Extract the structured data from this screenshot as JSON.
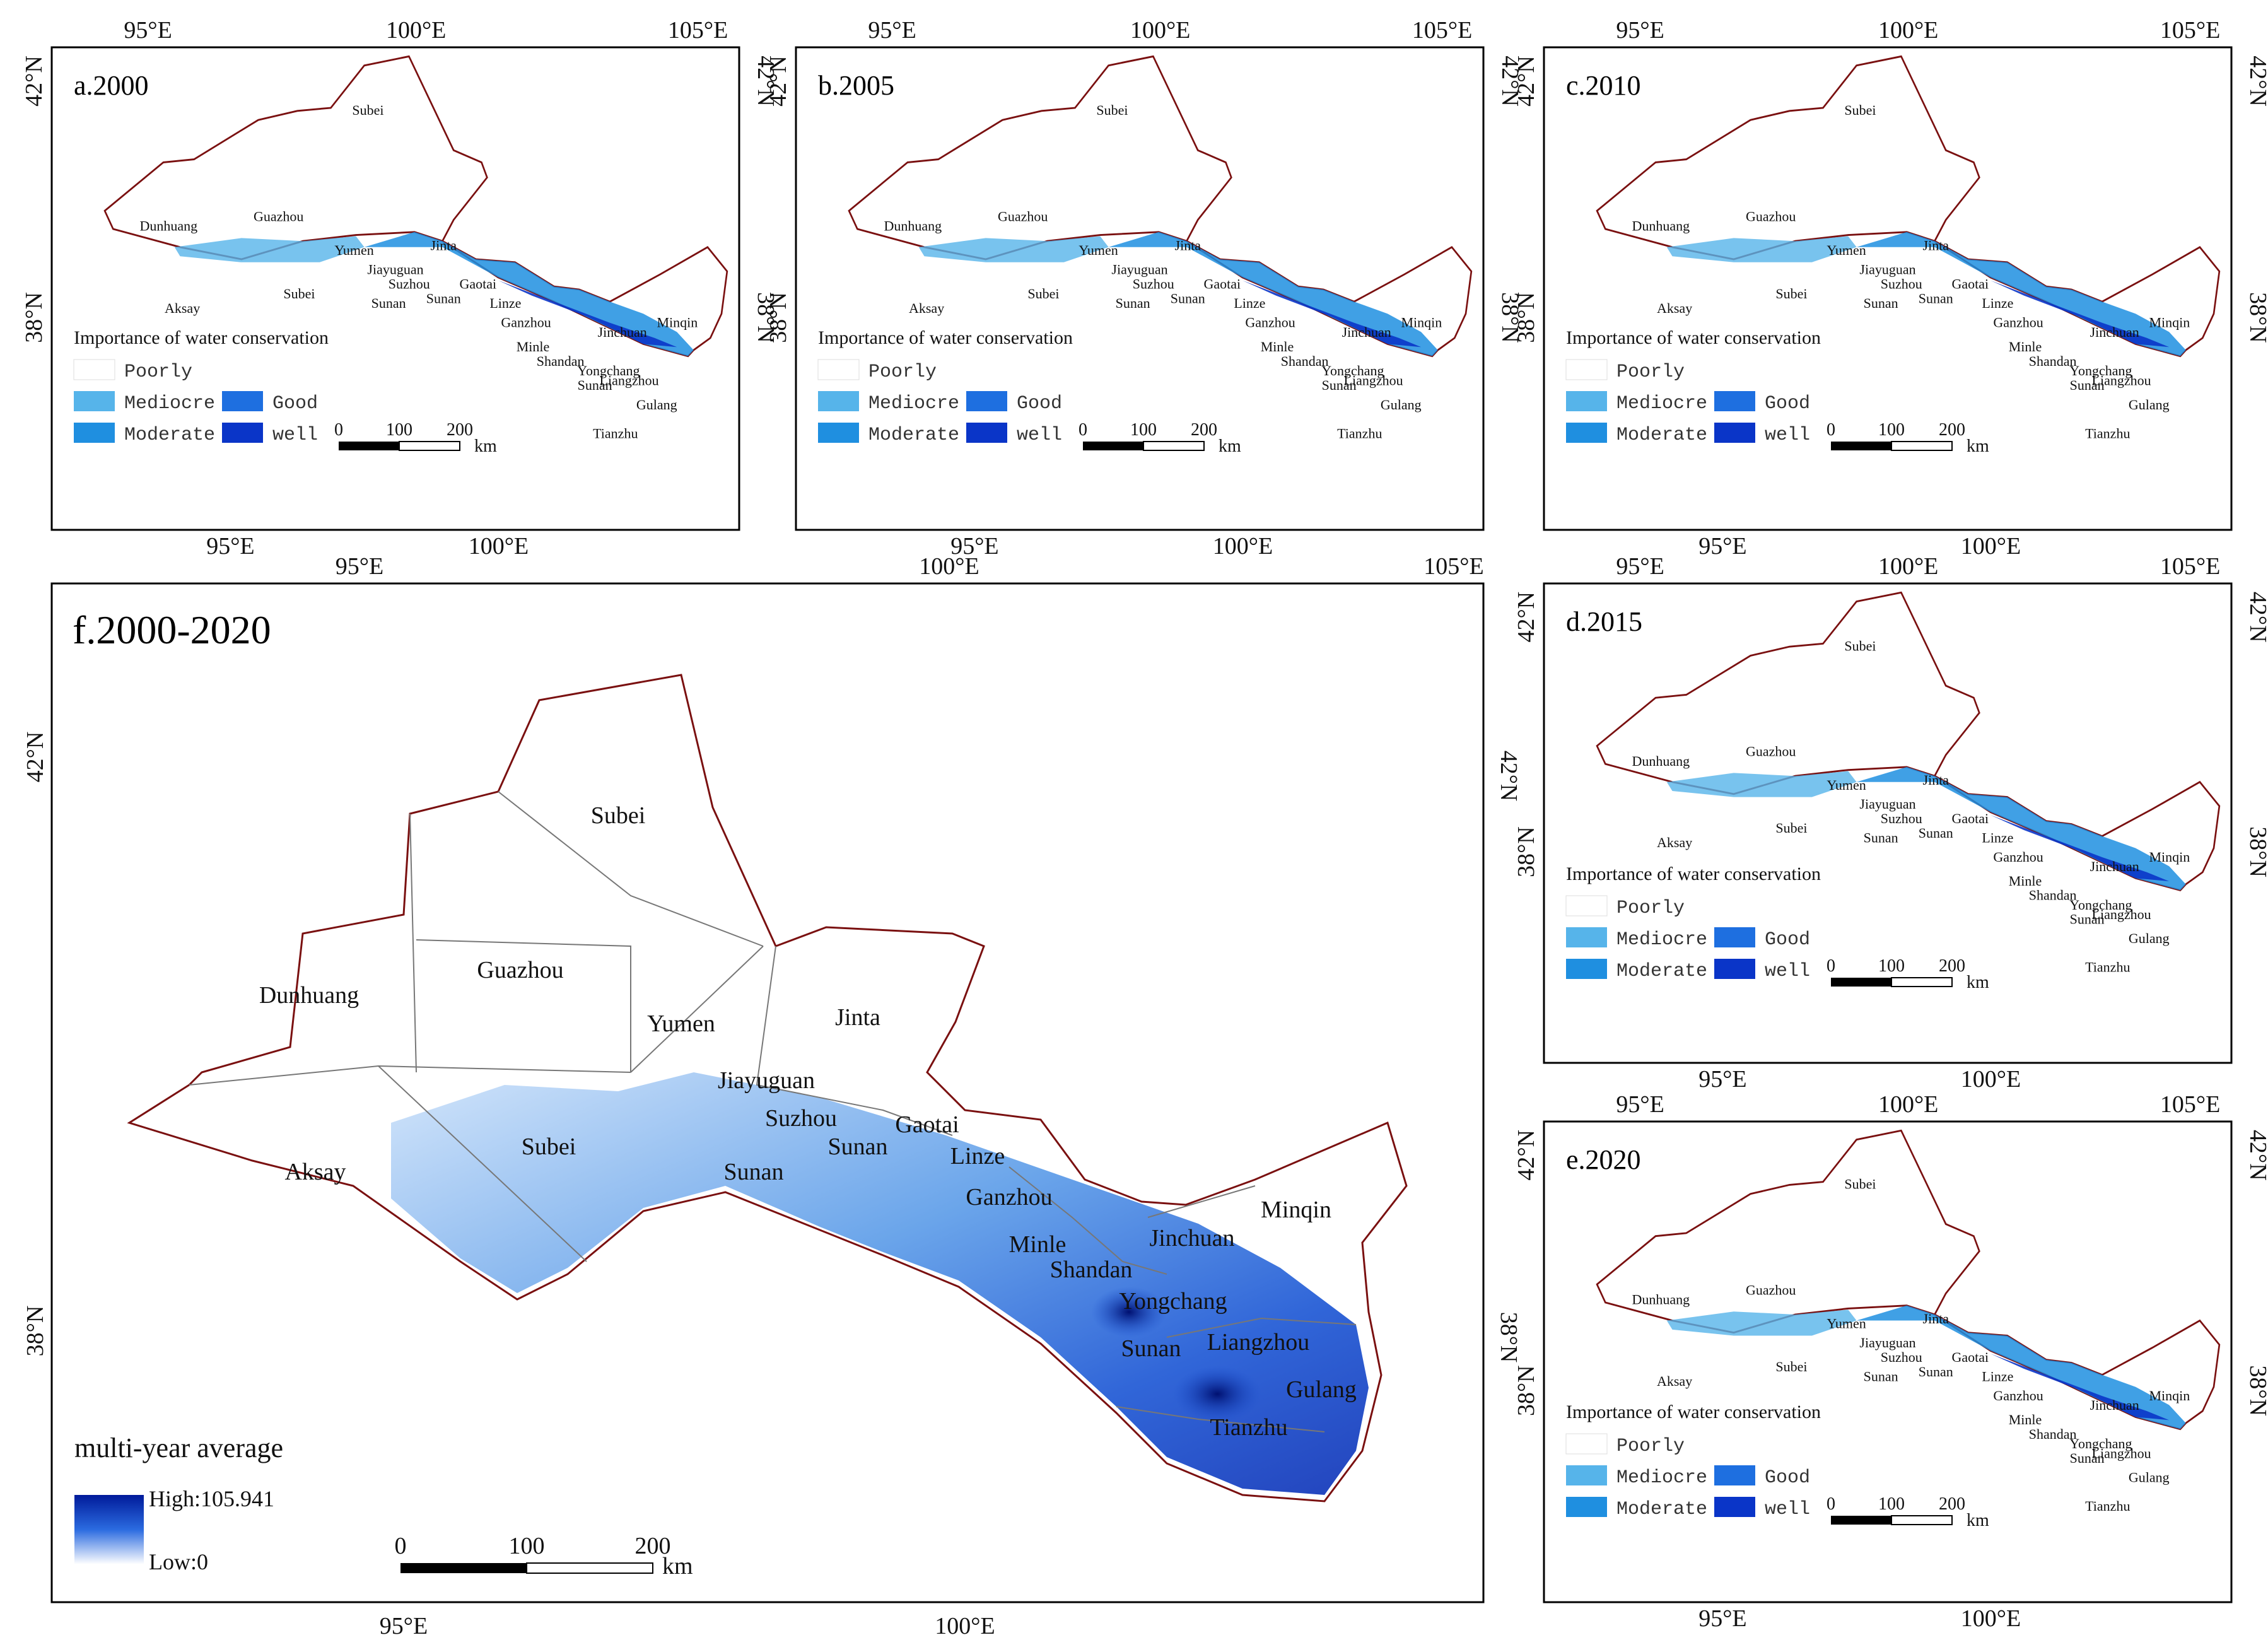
{
  "colors": {
    "poorly": "#ffffff",
    "mediocre": "#56b4ea",
    "moderate": "#1f8fe0",
    "good": "#1e6fe0",
    "well": "#0a35c8",
    "outline": "#7a1010",
    "county": "#888888",
    "gradient_high": "#001a9a",
    "gradient_low": "#ffffff"
  },
  "axes": {
    "lon_95": "95°E",
    "lon_100": "100°E",
    "lon_105": "105°E",
    "lat_42": "42°N",
    "lat_38": "38°N"
  },
  "panels": [
    {
      "title": "a.2000"
    },
    {
      "title": "b.2005"
    },
    {
      "title": "c.2010"
    },
    {
      "title": "d.2015"
    },
    {
      "title": "e.2020"
    }
  ],
  "big_panel": {
    "title": "f.2000-2020",
    "legend_title": "multi-year average",
    "legend_high": "High:105.941",
    "legend_low": "Low:0"
  },
  "legend": {
    "title": "Importance of water conservation",
    "classes": [
      "Poorly",
      "Mediocre",
      "Moderate",
      "Good",
      "well"
    ]
  },
  "scalebar": {
    "labels": [
      "0",
      "100",
      "200"
    ],
    "unit": "km"
  },
  "places": {
    "subei": "Subei",
    "dunhuang": "Dunhuang",
    "guazhou": "Guazhou",
    "yumen": "Yumen",
    "jinta": "Jinta",
    "aksay": "Aksay",
    "jiayuguan": "Jiayuguan",
    "suzhou": "Suzhou",
    "sunan": "Sunan",
    "gaotai": "Gaotai",
    "linze": "Linze",
    "ganzhou": "Ganzhou",
    "minle": "Minle",
    "shandan": "Shandan",
    "jinchuan": "Jinchuan",
    "minqin": "Minqin",
    "yongchang": "Yongchang",
    "liangzhou": "Liangzhou",
    "gulang": "Gulang",
    "tianzhu": "Tianzhu"
  }
}
